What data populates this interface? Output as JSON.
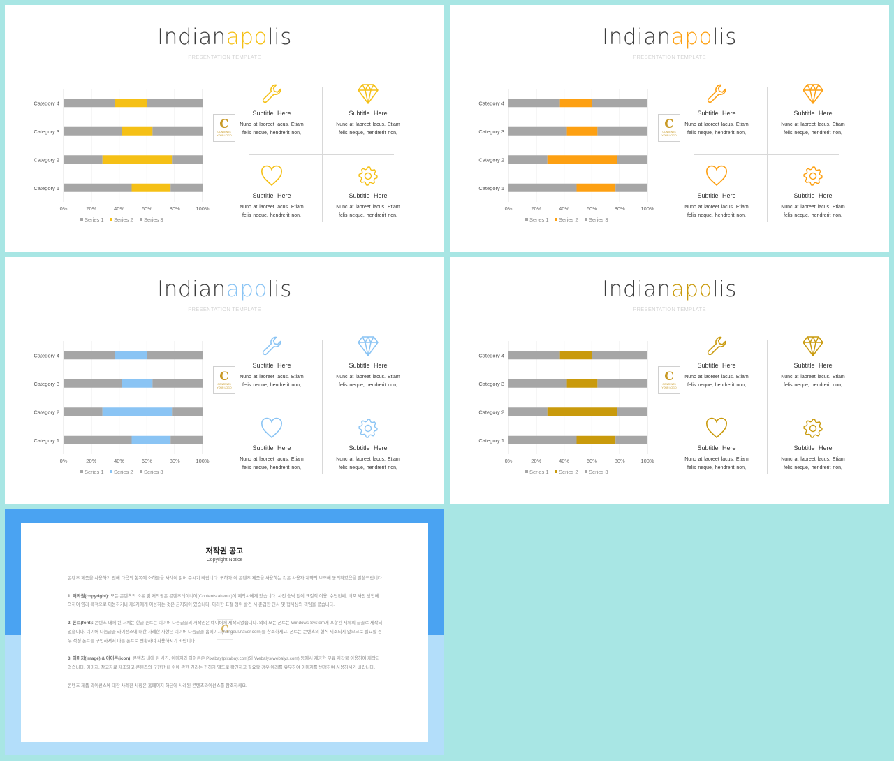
{
  "slides": [
    {
      "title_parts": [
        "Indian",
        "apo",
        "lis"
      ],
      "subtitle": "PRESENTATION TEMPLATE",
      "accent": "#f5c016",
      "logo": {
        "letter": "C",
        "text1": "CONTENTS",
        "text2": "YOUR LOGO"
      },
      "features": [
        {
          "icon": "wrench-icon",
          "title": "Subtitle  Here",
          "text1": "Nunc at laoreet lacus. Etiam",
          "text2": "felis neque, hendrerit non,"
        },
        {
          "icon": "diamond-icon",
          "title": "Subtitle  Here",
          "text1": "Nunc at laoreet lacus. Etiam",
          "text2": "felis neque, hendrerit non,"
        },
        {
          "icon": "heart-icon",
          "title": "Subtitle  Here",
          "text1": "Nunc at laoreet lacus. Etiam",
          "text2": "felis neque, hendrerit non,"
        },
        {
          "icon": "gear-icon",
          "title": "Subtitle  Here",
          "text1": "Nunc at laoreet lacus. Etiam",
          "text2": "felis neque, hendrerit non,"
        }
      ]
    },
    {
      "title_parts": [
        "Indian",
        "apo",
        "lis"
      ],
      "subtitle": "PRESENTATION TEMPLATE",
      "accent": "#fda012",
      "logo": {
        "letter": "C",
        "text1": "CONTENTS",
        "text2": "YOUR LOGO"
      },
      "features": [
        {
          "icon": "wrench-icon",
          "title": "Subtitle  Here",
          "text1": "Nunc at laoreet lacus. Etiam",
          "text2": "felis neque, hendrerit non,"
        },
        {
          "icon": "diamond-icon",
          "title": "Subtitle  Here",
          "text1": "Nunc at laoreet lacus. Etiam",
          "text2": "felis neque, hendrerit non,"
        },
        {
          "icon": "heart-icon",
          "title": "Subtitle  Here",
          "text1": "Nunc at laoreet lacus. Etiam",
          "text2": "felis neque, hendrerit non,"
        },
        {
          "icon": "gear-icon",
          "title": "Subtitle  Here",
          "text1": "Nunc at laoreet lacus. Etiam",
          "text2": "felis neque, hendrerit non,"
        }
      ]
    },
    {
      "title_parts": [
        "Indian",
        "apo",
        "lis"
      ],
      "subtitle": "PRESENTATION TEMPLATE",
      "accent": "#8ac4f4",
      "logo": {
        "letter": "C",
        "text1": "CONTENTS",
        "text2": "YOUR LOGO"
      },
      "features": [
        {
          "icon": "wrench-icon",
          "title": "Subtitle  Here",
          "text1": "Nunc at laoreet lacus. Etiam",
          "text2": "felis neque, hendrerit non,"
        },
        {
          "icon": "diamond-icon",
          "title": "Subtitle  Here",
          "text1": "Nunc at laoreet lacus. Etiam",
          "text2": "felis neque, hendrerit non,"
        },
        {
          "icon": "heart-icon",
          "title": "Subtitle  Here",
          "text1": "Nunc at laoreet lacus. Etiam",
          "text2": "felis neque, hendrerit non,"
        },
        {
          "icon": "gear-icon",
          "title": "Subtitle  Here",
          "text1": "Nunc at laoreet lacus. Etiam",
          "text2": "felis neque, hendrerit non,"
        }
      ]
    },
    {
      "title_parts": [
        "Indian",
        "apo",
        "lis"
      ],
      "subtitle": "PRESENTATION TEMPLATE",
      "accent": "#c99a0c",
      "logo": {
        "letter": "C",
        "text1": "CONTENTS",
        "text2": "YOUR LOGO"
      },
      "features": [
        {
          "icon": "wrench-icon",
          "title": "Subtitle  Here",
          "text1": "Nunc at laoreet lacus. Etiam",
          "text2": "felis neque, hendrerit non,"
        },
        {
          "icon": "diamond-icon",
          "title": "Subtitle  Here",
          "text1": "Nunc at laoreet lacus. Etiam",
          "text2": "felis neque, hendrerit non,"
        },
        {
          "icon": "heart-icon",
          "title": "Subtitle  Here",
          "text1": "Nunc at laoreet lacus. Etiam",
          "text2": "felis neque, hendrerit non,"
        },
        {
          "icon": "gear-icon",
          "title": "Subtitle  Here",
          "text1": "Nunc at laoreet lacus. Etiam",
          "text2": "felis neque, hendrerit non,"
        }
      ]
    }
  ],
  "chart_data": [
    {
      "type": "bar",
      "orientation": "horizontal-stacked-100",
      "categories": [
        "Category 1",
        "Category 2",
        "Category 3",
        "Category 4"
      ],
      "series": [
        {
          "name": "Series 1",
          "values": [
            49,
            28,
            42,
            37
          ]
        },
        {
          "name": "Series 2",
          "values": [
            28,
            50,
            22,
            23
          ]
        },
        {
          "name": "Series 3",
          "values": [
            23,
            22,
            36,
            40
          ]
        }
      ],
      "xticks": [
        "0%",
        "20%",
        "40%",
        "60%",
        "80%",
        "100%"
      ],
      "colors": [
        "#a6a6a6",
        "#f5c016",
        "#a6a6a6"
      ],
      "legend": "bottom",
      "grid": true
    },
    {
      "type": "bar",
      "orientation": "horizontal-stacked-100",
      "categories": [
        "Category 1",
        "Category 2",
        "Category 3",
        "Category 4"
      ],
      "series": [
        {
          "name": "Series 1",
          "values": [
            49,
            28,
            42,
            37
          ]
        },
        {
          "name": "Series 2",
          "values": [
            28,
            50,
            22,
            23
          ]
        },
        {
          "name": "Series 3",
          "values": [
            23,
            22,
            36,
            40
          ]
        }
      ],
      "xticks": [
        "0%",
        "20%",
        "40%",
        "60%",
        "80%",
        "100%"
      ],
      "colors": [
        "#a6a6a6",
        "#fda012",
        "#a6a6a6"
      ],
      "legend": "bottom",
      "grid": true
    },
    {
      "type": "bar",
      "orientation": "horizontal-stacked-100",
      "categories": [
        "Category 1",
        "Category 2",
        "Category 3",
        "Category 4"
      ],
      "series": [
        {
          "name": "Series 1",
          "values": [
            49,
            28,
            42,
            37
          ]
        },
        {
          "name": "Series 2",
          "values": [
            28,
            50,
            22,
            23
          ]
        },
        {
          "name": "Series 3",
          "values": [
            23,
            22,
            36,
            40
          ]
        }
      ],
      "xticks": [
        "0%",
        "20%",
        "40%",
        "60%",
        "80%",
        "100%"
      ],
      "colors": [
        "#a6a6a6",
        "#8ac4f4",
        "#a6a6a6"
      ],
      "legend": "bottom",
      "grid": true
    },
    {
      "type": "bar",
      "orientation": "horizontal-stacked-100",
      "categories": [
        "Category 1",
        "Category 2",
        "Category 3",
        "Category 4"
      ],
      "series": [
        {
          "name": "Series 1",
          "values": [
            49,
            28,
            42,
            37
          ]
        },
        {
          "name": "Series 2",
          "values": [
            28,
            50,
            22,
            23
          ]
        },
        {
          "name": "Series 3",
          "values": [
            23,
            22,
            36,
            40
          ]
        }
      ],
      "xticks": [
        "0%",
        "20%",
        "40%",
        "60%",
        "80%",
        "100%"
      ],
      "colors": [
        "#a6a6a6",
        "#c99a0c",
        "#a6a6a6"
      ],
      "legend": "bottom",
      "grid": true
    }
  ],
  "copyright": {
    "title": "저작권 공고",
    "subtitle": "Copyright Notice",
    "watermark": "C",
    "p0": "콘텐츠 제품을 사용하기 전에 다음의 항목에 소하들을 사례이 읽어 주시기 바랍니다. 귀하가 이 콘텐츠 제품을 사용하는 것은 사용자 계약의 보조에 동의하였음을 말씀드립니다.",
    "p1_head": "1. 저작권(copyright):",
    "p1": " 모든 콘텐츠의 소유 및 저작권은 콘텐츠테이너에(Contentstakeout)에 제작사에게 있습니다. 사전 승낙 없이 표절적 이용, 수단전체, 배포 사진 방법에 의하여 영리 목적으로 이용하거나 제3자에게 이용하는 것은 금지되어 있습니다. 이러한 표절 행위 발견 시 준업한 민사 및 형사상의 책임을 묻습니다.",
    "p2_head": "2. 폰트(font):",
    "p2": " 콘텐츠 내에 된 서체는 한글 폰트는 네이버 나눔글꼴의 저작권은 네이버에 제작되었습니다. 외의 모든 폰트는 Windows System에 포함된 서체의 글꼴로 제작되었습니다. 네이버 나눔글꼴 라이선스에 대한 사례한 사항은 네이버 나눔글꼴 홈페이지(hangeul.naver.com)를 참조하세요. 폰트는 콘텐츠의 형식 제조되지 않으므로 필요할 경우 적정 폰트를 구입하셔서 다른 폰트로 변환하여 사용하시기 바랍니다.",
    "p3_head": "3. 이미지(image) & 아이콘(icon):",
    "p3": " 콘텐츠 내에 된 사진, 이미지와 아이콘은 Pixabay(pixabay.com)와 Webalys(webalys.com) 등에서 제공한 무료 저작물 이용하여 제작되었습니다. 이미지, 참고자료 제조되고 콘텐츠의 구현한 내 이에 관한 권리는 귀하가 별도로 확인하고 필요할 경우 아래를 유무하여 이미지를 변경하여 사용하시기 바랍니다.",
    "p4": "콘텐츠 제품 라이선스에 대한 사례한 사항은 홈페이지 하단에 사례된 콘텐츠라이선스를 참조하세요."
  }
}
